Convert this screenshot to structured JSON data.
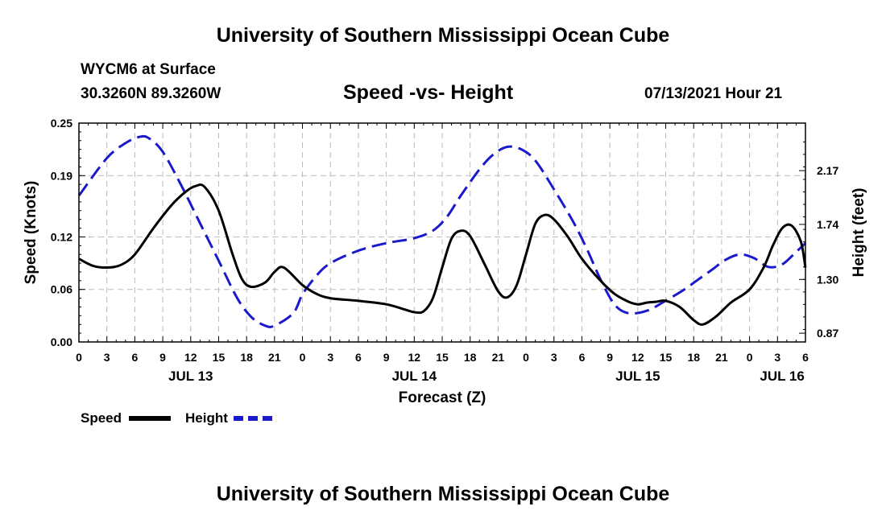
{
  "header": {
    "title": "University of Southern Mississippi Ocean Cube",
    "station": "WYCM6 at Surface",
    "coords": "30.3260N  89.3260W",
    "subtitle": "Speed -vs- Height",
    "datetime": "07/13/2021 Hour 21"
  },
  "footer": {
    "title": "University of Southern Mississippi Ocean Cube"
  },
  "colors": {
    "speed": "#000000",
    "height": "#1a1acc",
    "grid": "#bbbbbb"
  },
  "chart_data": {
    "type": "line",
    "title": "Speed -vs- Height",
    "xlabel": "Forecast (Z)",
    "ylabel": "Speed (Knots)",
    "y2label": "Height (feet)",
    "x_unit": "hours from JUL 12 00Z",
    "xlim": [
      0,
      78
    ],
    "ylim": [
      0,
      0.25
    ],
    "y2lim": [
      0.8,
      2.55
    ],
    "x_ticks": [
      0,
      3,
      6,
      9,
      12,
      15,
      18,
      21,
      24,
      27,
      30,
      33,
      36,
      39,
      42,
      45,
      48,
      51,
      54,
      57,
      60,
      63,
      66,
      69,
      72,
      75,
      78
    ],
    "x_tick_labels": [
      "0",
      "3",
      "6",
      "9",
      "12",
      "15",
      "18",
      "21",
      "0",
      "3",
      "6",
      "9",
      "12",
      "15",
      "18",
      "21",
      "0",
      "3",
      "6",
      "9",
      "12",
      "15",
      "18",
      "21",
      "0",
      "3",
      "6"
    ],
    "y_ticks": [
      0.0,
      0.06,
      0.12,
      0.19,
      0.25
    ],
    "y_tick_labels": [
      "0.00",
      "0.06",
      "0.12",
      "0.19",
      "0.25"
    ],
    "y2_ticks": [
      0.87,
      1.3,
      1.74,
      2.17
    ],
    "y2_tick_labels": [
      "0.87",
      "1.30",
      "1.74",
      "2.17"
    ],
    "day_labels": [
      {
        "x": 12,
        "label": "JUL 13"
      },
      {
        "x": 36,
        "label": "JUL 14"
      },
      {
        "x": 60,
        "label": "JUL 15"
      },
      {
        "x": 75.5,
        "label": "JUL 16"
      }
    ],
    "grid": true,
    "legend": {
      "position": "bottom-left"
    },
    "series": [
      {
        "name": "Speed",
        "axis": "left",
        "style": "solid",
        "x": [
          0,
          1.5,
          3,
          4.5,
          6,
          8,
          10,
          11.5,
          12.5,
          13.5,
          15,
          16.5,
          17.5,
          18.5,
          20,
          21,
          22,
          24,
          25.5,
          27,
          30,
          33,
          35,
          36,
          37,
          38,
          39,
          40,
          41,
          42,
          43.5,
          45,
          46,
          47,
          48,
          49,
          50,
          51,
          52.5,
          54,
          56,
          57.5,
          59,
          60,
          61,
          62,
          63,
          64.5,
          66,
          67,
          68.5,
          70,
          72,
          73.5,
          74.5,
          75.5,
          76.5,
          77.5,
          78
        ],
        "values": [
          0.095,
          0.087,
          0.085,
          0.088,
          0.1,
          0.13,
          0.157,
          0.172,
          0.178,
          0.177,
          0.15,
          0.1,
          0.072,
          0.063,
          0.068,
          0.08,
          0.085,
          0.065,
          0.055,
          0.05,
          0.047,
          0.043,
          0.037,
          0.034,
          0.035,
          0.05,
          0.085,
          0.118,
          0.127,
          0.121,
          0.09,
          0.058,
          0.051,
          0.065,
          0.1,
          0.135,
          0.145,
          0.14,
          0.12,
          0.095,
          0.07,
          0.055,
          0.046,
          0.043,
          0.045,
          0.046,
          0.047,
          0.04,
          0.025,
          0.02,
          0.03,
          0.045,
          0.06,
          0.085,
          0.11,
          0.13,
          0.133,
          0.115,
          0.085
        ],
        "display_values": [
          0.095,
          0.087,
          0.085,
          0.088,
          0.1,
          0.13,
          0.157,
          0.172,
          0.178,
          0.177,
          0.15,
          0.1,
          0.072,
          0.063,
          0.068,
          0.08,
          0.085,
          0.065,
          0.055,
          0.05,
          0.047,
          0.043,
          0.037,
          0.034,
          0.035,
          0.05,
          0.085,
          0.118,
          0.127,
          0.121,
          0.09,
          0.058,
          0.051,
          0.065,
          0.1,
          0.135,
          0.145,
          0.14,
          0.12,
          0.095,
          0.07,
          0.055,
          0.046,
          0.043,
          0.045,
          0.046,
          0.047,
          0.04,
          0.025,
          0.02,
          0.03,
          0.045,
          0.06,
          0.085,
          0.11,
          0.13,
          0.133,
          0.115,
          0.085
        ]
      },
      {
        "name": "Height",
        "axis": "right",
        "style": "dashed",
        "x": [
          0,
          3,
          5,
          6.5,
          7.5,
          9,
          11,
          13,
          15,
          17,
          18.5,
          20,
          21,
          23,
          24,
          25.5,
          27,
          30,
          33,
          36,
          38,
          39.5,
          41,
          43,
          44.5,
          46,
          47.5,
          49,
          51,
          53,
          54.5,
          56,
          57.5,
          59,
          61,
          63,
          65,
          66.5,
          68,
          69.5,
          71,
          72.5,
          74,
          75.5,
          77,
          78
        ],
        "values": [
          1.97,
          2.27,
          2.39,
          2.44,
          2.43,
          2.32,
          2.05,
          1.75,
          1.45,
          1.15,
          1.0,
          0.93,
          0.93,
          1.03,
          1.18,
          1.33,
          1.43,
          1.53,
          1.59,
          1.63,
          1.69,
          1.8,
          1.97,
          2.18,
          2.3,
          2.36,
          2.34,
          2.25,
          2.02,
          1.77,
          1.55,
          1.3,
          1.1,
          1.03,
          1.05,
          1.13,
          1.22,
          1.3,
          1.38,
          1.46,
          1.5,
          1.47,
          1.4,
          1.42,
          1.52,
          1.59
        ],
        "display_values": [
          1.97,
          2.27,
          2.39,
          2.44,
          2.43,
          2.32,
          2.05,
          1.75,
          1.45,
          1.15,
          1.0,
          0.93,
          0.93,
          1.03,
          1.18,
          1.33,
          1.43,
          1.53,
          1.59,
          1.63,
          1.69,
          1.8,
          1.97,
          2.18,
          2.3,
          2.36,
          2.34,
          2.25,
          2.02,
          1.77,
          1.55,
          1.3,
          1.1,
          1.03,
          1.05,
          1.13,
          1.22,
          1.3,
          1.38,
          1.46,
          1.5,
          1.47,
          1.4,
          1.42,
          1.52,
          1.59
        ]
      }
    ]
  }
}
